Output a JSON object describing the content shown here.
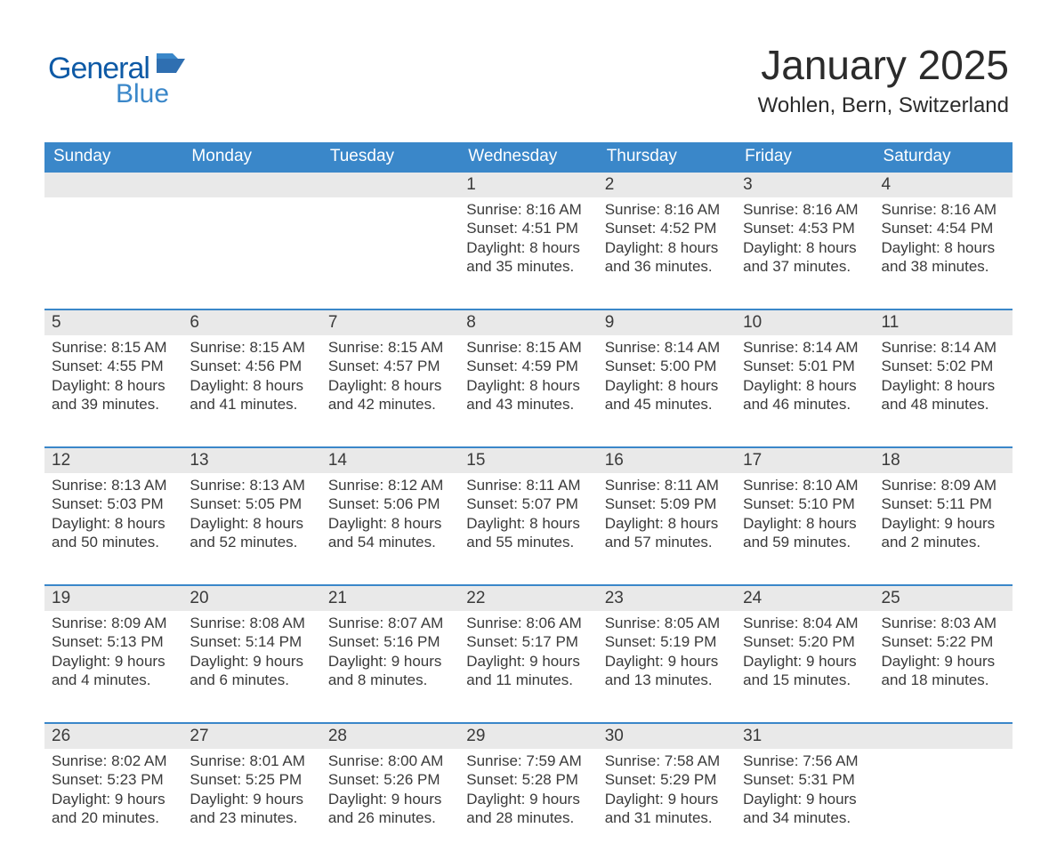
{
  "brand": {
    "word1": "General",
    "word2": "Blue",
    "color1": "#0e5aa6",
    "color2": "#3a87c9"
  },
  "title": "January 2025",
  "location": "Wohlen, Bern, Switzerland",
  "colors": {
    "header_bg": "#3a87c9",
    "header_text": "#ffffff",
    "daynum_bg": "#e9e9e9",
    "cell_border_top": "#3a87c9",
    "page_bg": "#ffffff",
    "text": "#3a3a3a"
  },
  "fonts": {
    "title_size_pt": 34,
    "location_size_pt": 18,
    "header_size_pt": 14,
    "body_size_pt": 13
  },
  "day_headers": [
    "Sunday",
    "Monday",
    "Tuesday",
    "Wednesday",
    "Thursday",
    "Friday",
    "Saturday"
  ],
  "labels": {
    "sunrise": "Sunrise:",
    "sunset": "Sunset:",
    "daylight": "Daylight:"
  },
  "weeks": [
    [
      null,
      null,
      null,
      {
        "n": "1",
        "sunrise": "8:16 AM",
        "sunset": "4:51 PM",
        "daylight_l1": "8 hours",
        "daylight_l2": "and 35 minutes."
      },
      {
        "n": "2",
        "sunrise": "8:16 AM",
        "sunset": "4:52 PM",
        "daylight_l1": "8 hours",
        "daylight_l2": "and 36 minutes."
      },
      {
        "n": "3",
        "sunrise": "8:16 AM",
        "sunset": "4:53 PM",
        "daylight_l1": "8 hours",
        "daylight_l2": "and 37 minutes."
      },
      {
        "n": "4",
        "sunrise": "8:16 AM",
        "sunset": "4:54 PM",
        "daylight_l1": "8 hours",
        "daylight_l2": "and 38 minutes."
      }
    ],
    [
      {
        "n": "5",
        "sunrise": "8:15 AM",
        "sunset": "4:55 PM",
        "daylight_l1": "8 hours",
        "daylight_l2": "and 39 minutes."
      },
      {
        "n": "6",
        "sunrise": "8:15 AM",
        "sunset": "4:56 PM",
        "daylight_l1": "8 hours",
        "daylight_l2": "and 41 minutes."
      },
      {
        "n": "7",
        "sunrise": "8:15 AM",
        "sunset": "4:57 PM",
        "daylight_l1": "8 hours",
        "daylight_l2": "and 42 minutes."
      },
      {
        "n": "8",
        "sunrise": "8:15 AM",
        "sunset": "4:59 PM",
        "daylight_l1": "8 hours",
        "daylight_l2": "and 43 minutes."
      },
      {
        "n": "9",
        "sunrise": "8:14 AM",
        "sunset": "5:00 PM",
        "daylight_l1": "8 hours",
        "daylight_l2": "and 45 minutes."
      },
      {
        "n": "10",
        "sunrise": "8:14 AM",
        "sunset": "5:01 PM",
        "daylight_l1": "8 hours",
        "daylight_l2": "and 46 minutes."
      },
      {
        "n": "11",
        "sunrise": "8:14 AM",
        "sunset": "5:02 PM",
        "daylight_l1": "8 hours",
        "daylight_l2": "and 48 minutes."
      }
    ],
    [
      {
        "n": "12",
        "sunrise": "8:13 AM",
        "sunset": "5:03 PM",
        "daylight_l1": "8 hours",
        "daylight_l2": "and 50 minutes."
      },
      {
        "n": "13",
        "sunrise": "8:13 AM",
        "sunset": "5:05 PM",
        "daylight_l1": "8 hours",
        "daylight_l2": "and 52 minutes."
      },
      {
        "n": "14",
        "sunrise": "8:12 AM",
        "sunset": "5:06 PM",
        "daylight_l1": "8 hours",
        "daylight_l2": "and 54 minutes."
      },
      {
        "n": "15",
        "sunrise": "8:11 AM",
        "sunset": "5:07 PM",
        "daylight_l1": "8 hours",
        "daylight_l2": "and 55 minutes."
      },
      {
        "n": "16",
        "sunrise": "8:11 AM",
        "sunset": "5:09 PM",
        "daylight_l1": "8 hours",
        "daylight_l2": "and 57 minutes."
      },
      {
        "n": "17",
        "sunrise": "8:10 AM",
        "sunset": "5:10 PM",
        "daylight_l1": "8 hours",
        "daylight_l2": "and 59 minutes."
      },
      {
        "n": "18",
        "sunrise": "8:09 AM",
        "sunset": "5:11 PM",
        "daylight_l1": "9 hours",
        "daylight_l2": "and 2 minutes."
      }
    ],
    [
      {
        "n": "19",
        "sunrise": "8:09 AM",
        "sunset": "5:13 PM",
        "daylight_l1": "9 hours",
        "daylight_l2": "and 4 minutes."
      },
      {
        "n": "20",
        "sunrise": "8:08 AM",
        "sunset": "5:14 PM",
        "daylight_l1": "9 hours",
        "daylight_l2": "and 6 minutes."
      },
      {
        "n": "21",
        "sunrise": "8:07 AM",
        "sunset": "5:16 PM",
        "daylight_l1": "9 hours",
        "daylight_l2": "and 8 minutes."
      },
      {
        "n": "22",
        "sunrise": "8:06 AM",
        "sunset": "5:17 PM",
        "daylight_l1": "9 hours",
        "daylight_l2": "and 11 minutes."
      },
      {
        "n": "23",
        "sunrise": "8:05 AM",
        "sunset": "5:19 PM",
        "daylight_l1": "9 hours",
        "daylight_l2": "and 13 minutes."
      },
      {
        "n": "24",
        "sunrise": "8:04 AM",
        "sunset": "5:20 PM",
        "daylight_l1": "9 hours",
        "daylight_l2": "and 15 minutes."
      },
      {
        "n": "25",
        "sunrise": "8:03 AM",
        "sunset": "5:22 PM",
        "daylight_l1": "9 hours",
        "daylight_l2": "and 18 minutes."
      }
    ],
    [
      {
        "n": "26",
        "sunrise": "8:02 AM",
        "sunset": "5:23 PM",
        "daylight_l1": "9 hours",
        "daylight_l2": "and 20 minutes."
      },
      {
        "n": "27",
        "sunrise": "8:01 AM",
        "sunset": "5:25 PM",
        "daylight_l1": "9 hours",
        "daylight_l2": "and 23 minutes."
      },
      {
        "n": "28",
        "sunrise": "8:00 AM",
        "sunset": "5:26 PM",
        "daylight_l1": "9 hours",
        "daylight_l2": "and 26 minutes."
      },
      {
        "n": "29",
        "sunrise": "7:59 AM",
        "sunset": "5:28 PM",
        "daylight_l1": "9 hours",
        "daylight_l2": "and 28 minutes."
      },
      {
        "n": "30",
        "sunrise": "7:58 AM",
        "sunset": "5:29 PM",
        "daylight_l1": "9 hours",
        "daylight_l2": "and 31 minutes."
      },
      {
        "n": "31",
        "sunrise": "7:56 AM",
        "sunset": "5:31 PM",
        "daylight_l1": "9 hours",
        "daylight_l2": "and 34 minutes."
      },
      null
    ]
  ]
}
